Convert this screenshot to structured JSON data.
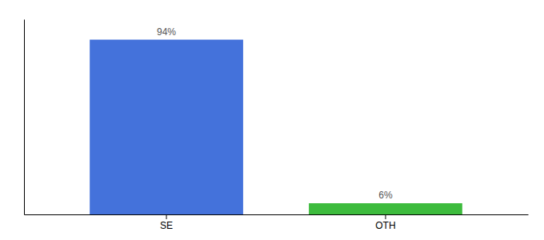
{
  "chart_data": {
    "type": "bar",
    "categories": [
      "SE",
      "OTH"
    ],
    "values": [
      94,
      6
    ],
    "value_labels": [
      "94%",
      "6%"
    ],
    "colors": [
      "#4472db",
      "#3dbb3d"
    ],
    "ylim": [
      0,
      105
    ],
    "data_labels": true,
    "tick_labels": "x"
  }
}
